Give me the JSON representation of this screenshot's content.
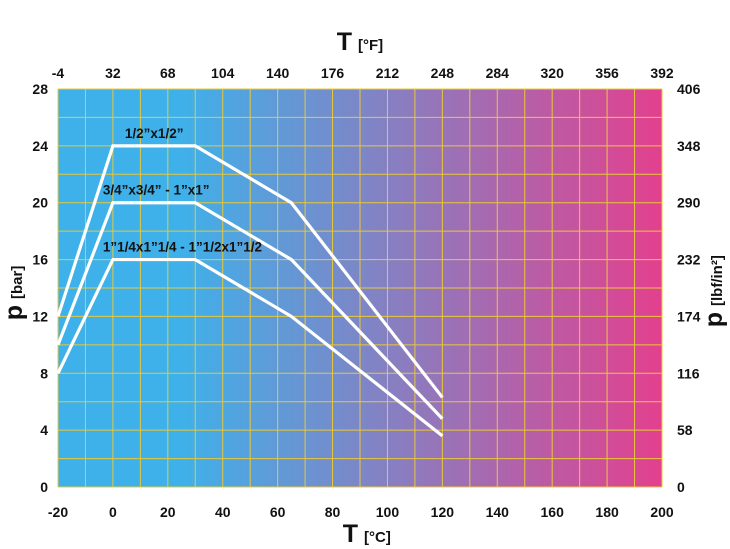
{
  "chart_data": {
    "type": "line",
    "x_axis": {
      "label_main": "T",
      "label_unit": "[°C]",
      "range": [
        -20,
        200
      ],
      "ticks": [
        "-20",
        "0",
        "20",
        "40",
        "60",
        "80",
        "100",
        "120",
        "140",
        "160",
        "180",
        "200"
      ]
    },
    "x2_axis": {
      "label_main": "T",
      "label_unit": "[°F]",
      "range": [
        -4,
        392
      ],
      "ticks": [
        "-4",
        "32",
        "68",
        "104",
        "140",
        "176",
        "212",
        "248",
        "284",
        "320",
        "356",
        "392"
      ]
    },
    "y_axis": {
      "label_main": "p",
      "label_unit": "[bar]",
      "range": [
        0,
        28
      ],
      "ticks": [
        "0",
        "4",
        "8",
        "12",
        "16",
        "20",
        "24",
        "28"
      ]
    },
    "y2_axis": {
      "label_main": "p",
      "label_unit": "[lbf/in²]",
      "range": [
        0,
        406
      ],
      "ticks": [
        "0",
        "58",
        "116",
        "174",
        "232",
        "290",
        "348",
        "406"
      ]
    },
    "grid": true,
    "background_gradient": [
      "#3eb1ea",
      "#e3408e"
    ],
    "line_color": "#ffffff",
    "series": [
      {
        "name": "1/2”x1/2”",
        "x": [
          -20,
          0,
          30,
          65,
          120
        ],
        "y": [
          12,
          24,
          24,
          20,
          6.3
        ]
      },
      {
        "name": "3/4”x3/4” -  1”x1”",
        "x": [
          -20,
          0,
          30,
          65,
          120
        ],
        "y": [
          10,
          20,
          20,
          16,
          4.8
        ]
      },
      {
        "name": "1”1/4x1”1/4 - 1”1/2x1”1/2",
        "x": [
          -20,
          0,
          30,
          65,
          120
        ],
        "y": [
          8,
          16,
          16,
          12,
          3.6
        ]
      }
    ]
  }
}
